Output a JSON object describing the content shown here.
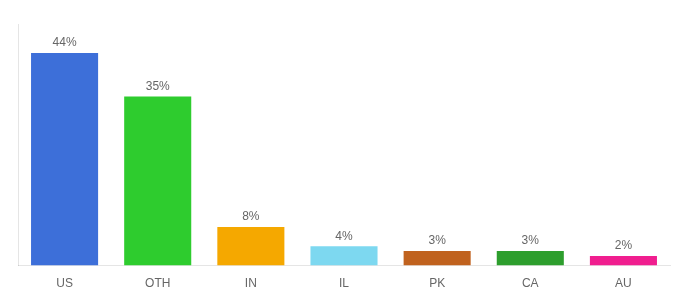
{
  "chart_data": {
    "type": "bar",
    "categories": [
      "US",
      "OTH",
      "IN",
      "IL",
      "PK",
      "CA",
      "AU"
    ],
    "values": [
      44,
      35,
      8,
      4,
      3,
      3,
      2
    ],
    "value_labels": [
      "44%",
      "35%",
      "8%",
      "4%",
      "3%",
      "3%",
      "2%"
    ],
    "colors": [
      "#3d6fd9",
      "#2ecc2e",
      "#f5a800",
      "#7dd8f0",
      "#c0621e",
      "#2d9e2d",
      "#f01e8f"
    ],
    "ylim": [
      0,
      50
    ],
    "grid": false,
    "data_labels": true,
    "tick_labels": "x"
  }
}
